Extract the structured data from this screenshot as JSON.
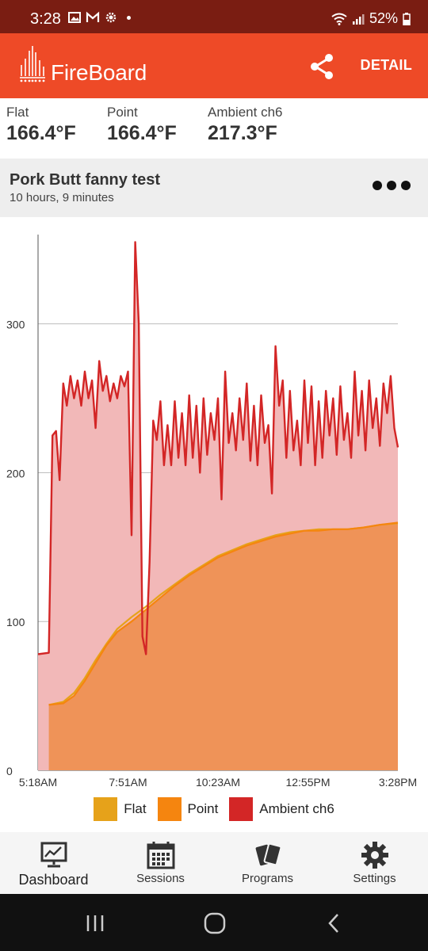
{
  "status_bar": {
    "time": "3:28",
    "battery": "52%"
  },
  "app_bar": {
    "logo_text": "FireBoard",
    "share_icon": "share-icon",
    "detail_label": "DETAIL"
  },
  "readings": [
    {
      "label": "Flat",
      "value": "166.4°F"
    },
    {
      "label": "Point",
      "value": "166.4°F"
    },
    {
      "label": "Ambient ch6",
      "value": "217.3°F"
    }
  ],
  "session": {
    "title": "Pork Butt fanny test",
    "duration": "10 hours, 9 minutes",
    "more_icon": "more-horizontal-icon"
  },
  "chart_data": {
    "type": "area",
    "x": [
      "5:18AM",
      "7:51AM",
      "10:23AM",
      "12:55PM",
      "3:28PM"
    ],
    "x_ticks": [
      "5:18AM",
      "7:51AM",
      "10:23AM",
      "12:55PM",
      "3:28PM"
    ],
    "y_ticks": [
      "0",
      "100",
      "200",
      "300"
    ],
    "ylim": [
      0,
      360
    ],
    "grid": true,
    "legend_position": "bottom",
    "series": [
      {
        "name": "Flat",
        "color": "#e6a21a",
        "points": [
          [
            0.03,
            44
          ],
          [
            0.07,
            46
          ],
          [
            0.1,
            52
          ],
          [
            0.13,
            62
          ],
          [
            0.16,
            74
          ],
          [
            0.19,
            85
          ],
          [
            0.22,
            95
          ],
          [
            0.26,
            103
          ],
          [
            0.3,
            110
          ],
          [
            0.34,
            118
          ],
          [
            0.38,
            125
          ],
          [
            0.42,
            132
          ],
          [
            0.46,
            138
          ],
          [
            0.5,
            144
          ],
          [
            0.54,
            148
          ],
          [
            0.58,
            152
          ],
          [
            0.62,
            155
          ],
          [
            0.66,
            158
          ],
          [
            0.7,
            160
          ],
          [
            0.74,
            161
          ],
          [
            0.78,
            162
          ],
          [
            0.82,
            162
          ],
          [
            0.86,
            162
          ],
          [
            0.9,
            163
          ],
          [
            0.95,
            165
          ],
          [
            1.0,
            166
          ]
        ]
      },
      {
        "name": "Point",
        "color": "#f5850f",
        "points": [
          [
            0.03,
            44
          ],
          [
            0.07,
            45
          ],
          [
            0.1,
            50
          ],
          [
            0.13,
            60
          ],
          [
            0.16,
            72
          ],
          [
            0.19,
            84
          ],
          [
            0.22,
            93
          ],
          [
            0.26,
            100
          ],
          [
            0.3,
            108
          ],
          [
            0.34,
            116
          ],
          [
            0.38,
            124
          ],
          [
            0.42,
            131
          ],
          [
            0.46,
            137
          ],
          [
            0.5,
            143
          ],
          [
            0.54,
            147
          ],
          [
            0.58,
            151
          ],
          [
            0.62,
            154
          ],
          [
            0.66,
            157
          ],
          [
            0.7,
            159
          ],
          [
            0.74,
            161
          ],
          [
            0.78,
            161
          ],
          [
            0.82,
            162
          ],
          [
            0.86,
            162
          ],
          [
            0.9,
            163
          ],
          [
            0.95,
            165
          ],
          [
            1.0,
            166.4
          ]
        ]
      },
      {
        "name": "Ambient ch6",
        "color": "#d32626",
        "points": [
          [
            0.0,
            78
          ],
          [
            0.03,
            79
          ],
          [
            0.04,
            225
          ],
          [
            0.05,
            228
          ],
          [
            0.06,
            195
          ],
          [
            0.07,
            260
          ],
          [
            0.08,
            245
          ],
          [
            0.09,
            265
          ],
          [
            0.1,
            250
          ],
          [
            0.11,
            262
          ],
          [
            0.12,
            245
          ],
          [
            0.13,
            268
          ],
          [
            0.14,
            250
          ],
          [
            0.15,
            262
          ],
          [
            0.16,
            230
          ],
          [
            0.17,
            275
          ],
          [
            0.18,
            255
          ],
          [
            0.19,
            265
          ],
          [
            0.2,
            248
          ],
          [
            0.21,
            260
          ],
          [
            0.22,
            250
          ],
          [
            0.23,
            265
          ],
          [
            0.24,
            258
          ],
          [
            0.25,
            268
          ],
          [
            0.26,
            158
          ],
          [
            0.27,
            355
          ],
          [
            0.28,
            300
          ],
          [
            0.29,
            90
          ],
          [
            0.3,
            78
          ],
          [
            0.31,
            140
          ],
          [
            0.32,
            235
          ],
          [
            0.33,
            222
          ],
          [
            0.34,
            248
          ],
          [
            0.35,
            205
          ],
          [
            0.36,
            232
          ],
          [
            0.37,
            205
          ],
          [
            0.38,
            248
          ],
          [
            0.39,
            210
          ],
          [
            0.4,
            240
          ],
          [
            0.41,
            205
          ],
          [
            0.42,
            252
          ],
          [
            0.43,
            210
          ],
          [
            0.44,
            245
          ],
          [
            0.45,
            200
          ],
          [
            0.46,
            250
          ],
          [
            0.47,
            212
          ],
          [
            0.48,
            240
          ],
          [
            0.49,
            222
          ],
          [
            0.5,
            250
          ],
          [
            0.51,
            182
          ],
          [
            0.52,
            268
          ],
          [
            0.53,
            220
          ],
          [
            0.54,
            240
          ],
          [
            0.55,
            215
          ],
          [
            0.56,
            250
          ],
          [
            0.57,
            222
          ],
          [
            0.58,
            260
          ],
          [
            0.59,
            208
          ],
          [
            0.6,
            245
          ],
          [
            0.61,
            205
          ],
          [
            0.62,
            252
          ],
          [
            0.63,
            220
          ],
          [
            0.64,
            232
          ],
          [
            0.65,
            186
          ],
          [
            0.66,
            285
          ],
          [
            0.67,
            245
          ],
          [
            0.68,
            262
          ],
          [
            0.69,
            210
          ],
          [
            0.7,
            255
          ],
          [
            0.71,
            215
          ],
          [
            0.72,
            235
          ],
          [
            0.73,
            205
          ],
          [
            0.74,
            262
          ],
          [
            0.75,
            220
          ],
          [
            0.76,
            258
          ],
          [
            0.77,
            205
          ],
          [
            0.78,
            248
          ],
          [
            0.79,
            210
          ],
          [
            0.8,
            255
          ],
          [
            0.81,
            225
          ],
          [
            0.82,
            250
          ],
          [
            0.83,
            212
          ],
          [
            0.84,
            258
          ],
          [
            0.85,
            222
          ],
          [
            0.86,
            240
          ],
          [
            0.87,
            210
          ],
          [
            0.88,
            268
          ],
          [
            0.89,
            225
          ],
          [
            0.9,
            255
          ],
          [
            0.91,
            215
          ],
          [
            0.92,
            262
          ],
          [
            0.93,
            230
          ],
          [
            0.94,
            250
          ],
          [
            0.95,
            218
          ],
          [
            0.96,
            260
          ],
          [
            0.97,
            240
          ],
          [
            0.98,
            265
          ],
          [
            0.99,
            230
          ],
          [
            1.0,
            217
          ]
        ]
      }
    ]
  },
  "legend": [
    {
      "label": "Flat",
      "color": "#e6a21a"
    },
    {
      "label": "Point",
      "color": "#f5850f"
    },
    {
      "label": "Ambient ch6",
      "color": "#d32626"
    }
  ],
  "bottom_nav": [
    {
      "label": "Dashboard",
      "icon": "dashboard-icon",
      "active": true
    },
    {
      "label": "Sessions",
      "icon": "calendar-icon",
      "active": false
    },
    {
      "label": "Programs",
      "icon": "programs-cards-icon",
      "active": false
    },
    {
      "label": "Settings",
      "icon": "gear-icon",
      "active": false
    }
  ],
  "system_nav": {
    "recents_icon": "recents-icon",
    "home_icon": "home-icon",
    "back_icon": "back-icon"
  }
}
